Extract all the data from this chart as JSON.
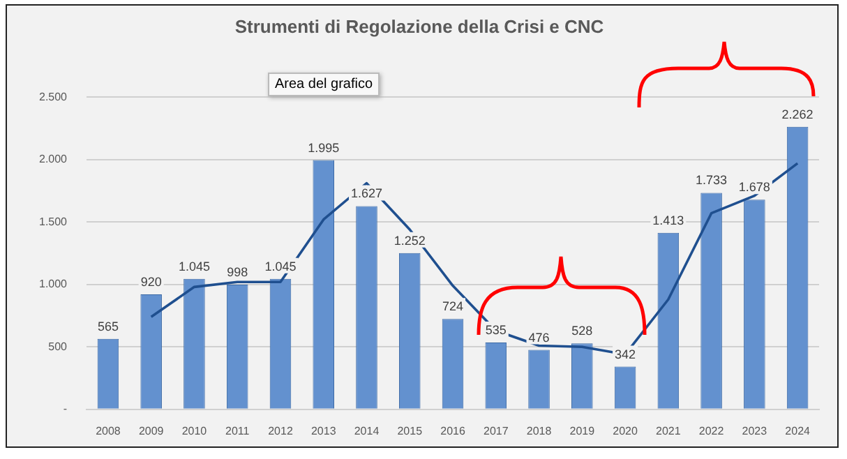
{
  "chart_data": {
    "type": "bar",
    "title": "Strumenti di Regolazione della Crisi e CNC",
    "categories": [
      "2008",
      "2009",
      "2010",
      "2011",
      "2012",
      "2013",
      "2014",
      "2015",
      "2016",
      "2017",
      "2018",
      "2019",
      "2020",
      "2021",
      "2022",
      "2023",
      "2024"
    ],
    "series": [
      {
        "color": "#6391cf",
        "values": [
          565,
          920,
          1045,
          998,
          1045,
          1995,
          1627,
          1252,
          724,
          535,
          476,
          528,
          342,
          1413,
          1733,
          1678,
          2262
        ],
        "value_labels": [
          "565",
          "920",
          "1.045",
          "998",
          "1.045",
          "1.995",
          "1.627",
          "1.252",
          "724",
          "535",
          "476",
          "528",
          "342",
          "1.413",
          "1.733",
          "1.678",
          "2.262"
        ]
      },
      {
        "type": "line",
        "color": "#1f4f8f",
        "values": [
          null,
          740,
          980,
          1020,
          1020,
          1520,
          1810,
          1440,
          990,
          630,
          510,
          500,
          440,
          880,
          1570,
          1710,
          1970
        ]
      }
    ],
    "ylim": [
      0,
      2500
    ],
    "yticks": [
      {
        "value": 0,
        "label": "-"
      },
      {
        "value": 500,
        "label": "500"
      },
      {
        "value": 1000,
        "label": "1.000"
      },
      {
        "value": 1500,
        "label": "1.500"
      },
      {
        "value": 2000,
        "label": "2.000"
      },
      {
        "value": 2500,
        "label": "2.500"
      }
    ],
    "grid": "y",
    "legend": false,
    "marker": "none",
    "annotations": [
      "Area del grafico"
    ]
  }
}
